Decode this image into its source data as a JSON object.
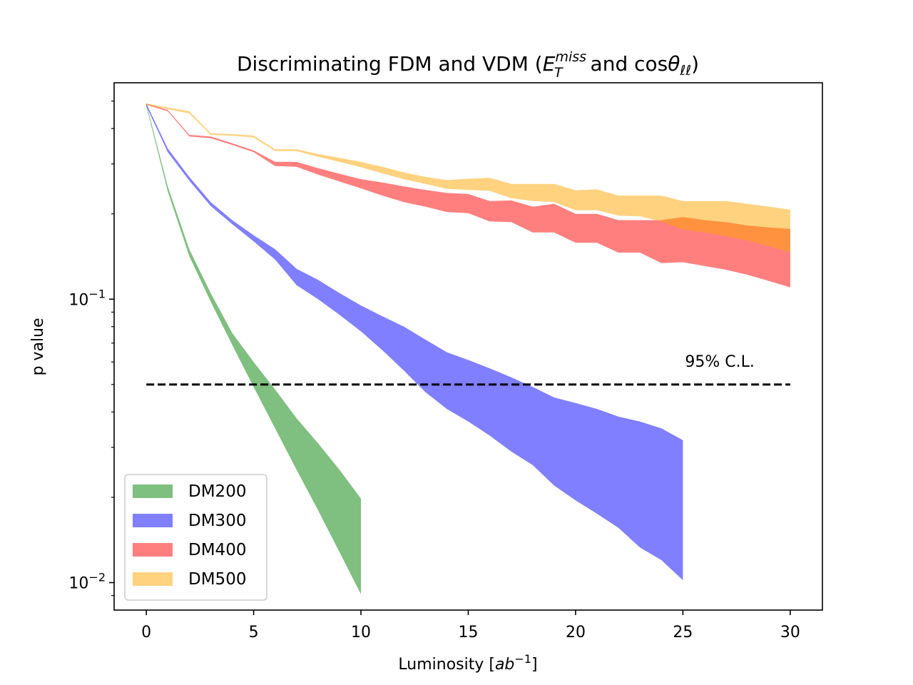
{
  "chart_data": {
    "type": "area",
    "title": "Discriminating FDM and VDM",
    "title_math": {
      "open": " (",
      "var1": "E",
      "var1_sub": "T",
      "var1_sup": "miss",
      "conj": " and cos",
      "var2": "θ",
      "var2_sub": "ℓℓ",
      "close": ")"
    },
    "xlabel": "Luminosity [",
    "xlabel_math": {
      "base": "ab",
      "sup": "−1",
      "close": "]"
    },
    "ylabel": "p value",
    "xlim": [
      -1.5,
      31.5
    ],
    "ylim": [
      0.008,
      0.58
    ],
    "yscale": "log",
    "x_ticks": [
      0,
      5,
      10,
      15,
      20,
      25,
      30
    ],
    "x_tick_labels": [
      "0",
      "5",
      "10",
      "15",
      "20",
      "25",
      "30"
    ],
    "y_major_ticks": [
      {
        "value": 0.1,
        "base": "10",
        "exp": "−1"
      },
      {
        "value": 0.01,
        "base": "10",
        "exp": "−2"
      }
    ],
    "y_minor_ticks": [
      0.009,
      0.02,
      0.03,
      0.04,
      0.05,
      0.06,
      0.07,
      0.08,
      0.09,
      0.2,
      0.3,
      0.4,
      0.5
    ],
    "reference_line": {
      "value": 0.05,
      "x_range": [
        0,
        30
      ],
      "label": "95% C.L."
    },
    "legend": {
      "position": "lower-left",
      "entries": [
        "DM200",
        "DM300",
        "DM400",
        "DM500"
      ]
    },
    "series": [
      {
        "name": "DM200",
        "color": "#008000",
        "alpha": 0.5,
        "x": [
          0,
          1,
          2,
          3,
          4,
          5,
          6,
          7,
          8,
          9,
          10
        ],
        "upper": [
          0.49,
          0.25,
          0.15,
          0.105,
          0.076,
          0.06,
          0.048,
          0.038,
          0.031,
          0.025,
          0.0198
        ],
        "lower": [
          0.48,
          0.24,
          0.142,
          0.098,
          0.069,
          0.049,
          0.035,
          0.025,
          0.018,
          0.0128,
          0.0091
        ]
      },
      {
        "name": "DM300",
        "color": "#0000ff",
        "alpha": 0.5,
        "x": [
          0,
          1,
          2,
          3,
          4,
          5,
          6,
          7,
          8,
          9,
          10,
          11,
          12,
          13,
          14,
          15,
          16,
          17,
          18,
          19,
          20,
          21,
          22,
          23,
          24,
          25
        ],
        "upper": [
          0.49,
          0.34,
          0.27,
          0.22,
          0.19,
          0.168,
          0.15,
          0.128,
          0.117,
          0.105,
          0.095,
          0.087,
          0.08,
          0.072,
          0.065,
          0.061,
          0.057,
          0.053,
          0.049,
          0.045,
          0.043,
          0.041,
          0.0385,
          0.037,
          0.035,
          0.0318
        ],
        "lower": [
          0.48,
          0.33,
          0.262,
          0.213,
          0.184,
          0.16,
          0.138,
          0.112,
          0.1,
          0.088,
          0.077,
          0.066,
          0.056,
          0.047,
          0.041,
          0.037,
          0.033,
          0.029,
          0.026,
          0.022,
          0.0195,
          0.0175,
          0.0156,
          0.0133,
          0.012,
          0.0102
        ]
      },
      {
        "name": "DM400",
        "color": "#ff0000",
        "alpha": 0.5,
        "x": [
          0,
          1,
          2,
          3,
          4,
          5,
          6,
          7,
          8,
          9,
          10,
          11,
          12,
          13,
          14,
          15,
          16,
          17,
          18,
          19,
          20,
          21,
          22,
          23,
          24,
          25,
          26,
          27,
          28,
          29,
          30
        ],
        "upper": [
          0.49,
          0.465,
          0.38,
          0.375,
          0.355,
          0.335,
          0.305,
          0.305,
          0.29,
          0.277,
          0.265,
          0.258,
          0.25,
          0.243,
          0.237,
          0.235,
          0.222,
          0.223,
          0.212,
          0.217,
          0.2,
          0.2,
          0.19,
          0.19,
          0.19,
          0.195,
          0.19,
          0.187,
          0.182,
          0.179,
          0.177
        ],
        "lower": [
          0.485,
          0.46,
          0.375,
          0.37,
          0.35,
          0.33,
          0.295,
          0.293,
          0.275,
          0.26,
          0.246,
          0.232,
          0.22,
          0.212,
          0.203,
          0.201,
          0.188,
          0.187,
          0.172,
          0.172,
          0.158,
          0.158,
          0.146,
          0.146,
          0.134,
          0.135,
          0.131,
          0.127,
          0.122,
          0.116,
          0.11
        ]
      },
      {
        "name": "DM500",
        "color": "#ffa500",
        "alpha": 0.5,
        "x": [
          0,
          1,
          2,
          3,
          4,
          5,
          6,
          7,
          8,
          9,
          10,
          11,
          12,
          13,
          14,
          15,
          16,
          17,
          18,
          19,
          20,
          21,
          22,
          23,
          24,
          25,
          26,
          27,
          28,
          29,
          30
        ],
        "upper": [
          0.49,
          0.475,
          0.46,
          0.385,
          0.382,
          0.378,
          0.338,
          0.338,
          0.325,
          0.315,
          0.305,
          0.293,
          0.28,
          0.27,
          0.263,
          0.266,
          0.268,
          0.255,
          0.255,
          0.255,
          0.242,
          0.244,
          0.232,
          0.232,
          0.232,
          0.222,
          0.222,
          0.222,
          0.217,
          0.212,
          0.207
        ],
        "lower": [
          0.485,
          0.468,
          0.452,
          0.38,
          0.377,
          0.372,
          0.333,
          0.333,
          0.318,
          0.305,
          0.292,
          0.278,
          0.265,
          0.255,
          0.245,
          0.243,
          0.241,
          0.227,
          0.222,
          0.22,
          0.206,
          0.206,
          0.197,
          0.196,
          0.188,
          0.176,
          0.172,
          0.167,
          0.161,
          0.154,
          0.146
        ]
      }
    ]
  }
}
